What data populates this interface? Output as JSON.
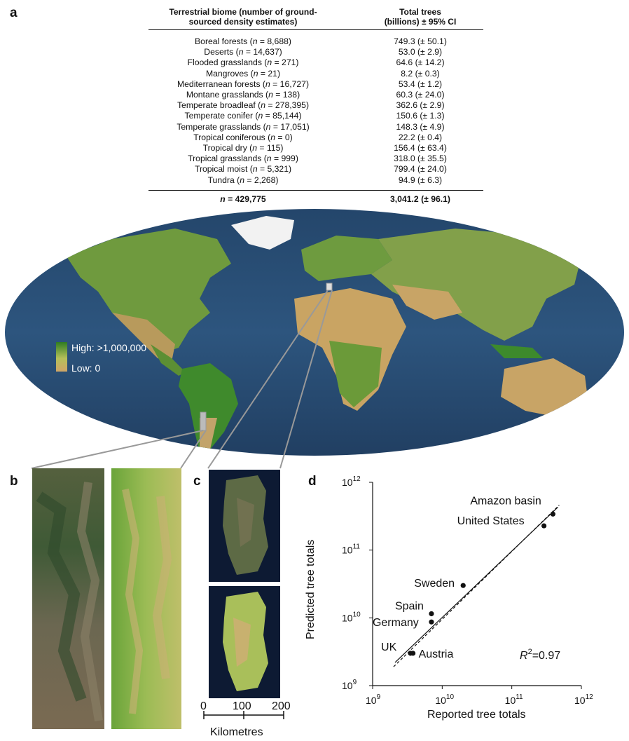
{
  "panels": {
    "a": "a",
    "b": "b",
    "c": "c",
    "d": "d"
  },
  "table": {
    "header_col1": "Terrestrial biome (number of ground-sourced density estimates)",
    "header_col1_line1": "Terrestrial biome (number of ground-",
    "header_col1_line2": "sourced density estimates)",
    "header_col2_line1": "Total trees",
    "header_col2_line2": "(billions) ± 95% CI",
    "rows": [
      {
        "biome": "Boreal forests",
        "n": "8,688",
        "total": "749.3 (± 50.1)"
      },
      {
        "biome": "Deserts",
        "n": "14,637",
        "total": "53.0 (± 2.9)"
      },
      {
        "biome": "Flooded grasslands",
        "n": "271",
        "total": "64.6 (± 14.2)"
      },
      {
        "biome": "Mangroves",
        "n": "21",
        "total": "8.2 (± 0.3)"
      },
      {
        "biome": "Mediterranean forests",
        "n": "16,727",
        "total": "53.4 (± 1.2)"
      },
      {
        "biome": "Montane grasslands",
        "n": "138",
        "total": "60.3 (± 24.0)"
      },
      {
        "biome": "Temperate broadleaf",
        "n": "278,395",
        "total": "362.6 (± 2.9)"
      },
      {
        "biome": "Temperate conifer",
        "n": "85,144",
        "total": "150.6 (± 1.3)"
      },
      {
        "biome": "Temperate grasslands",
        "n": "17,051",
        "total": "148.3 (± 4.9)"
      },
      {
        "biome": "Tropical coniferous",
        "n": "0",
        "total": "22.2 (± 0.4)"
      },
      {
        "biome": "Tropical dry",
        "n": "115",
        "total": "156.4 (± 63.4)"
      },
      {
        "biome": "Tropical grasslands",
        "n": "999",
        "total": "318.0 (± 35.5)"
      },
      {
        "biome": "Tropical moist",
        "n": "5,321",
        "total": "799.4 (± 24.0)"
      },
      {
        "biome": "Tundra",
        "n": "2,268",
        "total": "94.9 (± 6.3)"
      }
    ],
    "total_n": "429,775",
    "total_trees": "3,041.2 (± 96.1)"
  },
  "map_legend": {
    "high": "High: >1,000,000",
    "low": "Low: 0",
    "high_color": "#2f7d22",
    "low_color": "#cfa567"
  },
  "scale_bar": {
    "ticks": [
      "0",
      "100",
      "200"
    ],
    "label": "Kilometres"
  },
  "chart_data": {
    "type": "scatter",
    "xlabel": "Reported tree totals",
    "ylabel": "Predicted tree totals",
    "xscale": "log",
    "yscale": "log",
    "xlim_exp": [
      9,
      12
    ],
    "ylim_exp": [
      9,
      12
    ],
    "x_ticks": [
      "10",
      "10",
      "10",
      "10"
    ],
    "x_tick_exps": [
      "9",
      "10",
      "11",
      "12"
    ],
    "y_ticks": [
      "10",
      "10",
      "10",
      "10"
    ],
    "y_tick_exps": [
      "9",
      "10",
      "11",
      "12"
    ],
    "annotation": "=0.97",
    "annotation_r": "R",
    "annotation_sup": "2",
    "points": [
      {
        "label": "Amazon basin",
        "x": 390000000000,
        "y": 340000000000
      },
      {
        "label": "United States",
        "x": 290000000000,
        "y": 228000000000
      },
      {
        "label": "Sweden",
        "x": 20000000000,
        "y": 30000000000
      },
      {
        "label": "Spain",
        "x": 7000000000,
        "y": 11500000000
      },
      {
        "label": "Germany",
        "x": 7000000000,
        "y": 8700000000
      },
      {
        "label": "UK",
        "x": 3500000000,
        "y": 3000000000
      },
      {
        "label": "Austria",
        "x": 3800000000,
        "y": 3000000000
      }
    ],
    "grid": false
  }
}
